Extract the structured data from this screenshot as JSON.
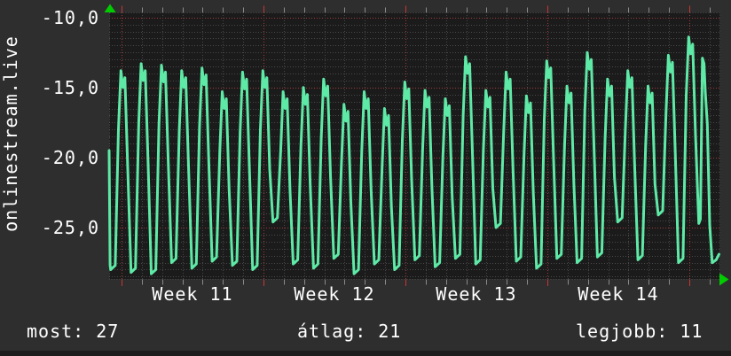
{
  "title_vertical": "onlinestream.live",
  "colors": {
    "background": "#2e2e2e",
    "plot_background": "#1b1b1b",
    "grid_minor": "#484848",
    "grid_major": "#a03a3a",
    "tick_day": "#8a8a8a",
    "tick_week": "#cc3333",
    "border": "#565656",
    "line": "#5ee9a6",
    "arrow": "#00cc00",
    "text": "#ffffff",
    "bottom_strip": "#1d1d1d"
  },
  "chart_data": {
    "type": "line",
    "title": "onlinestream.live",
    "xlabel": "",
    "ylabel": "onlinestream.live",
    "grid": true,
    "legend_position": "none",
    "x_unit": "days",
    "xlim_days": [
      0,
      30.15
    ],
    "ylim": [
      -28.7,
      -9.6
    ],
    "y_ticks": [
      -10,
      -15,
      -20,
      -25
    ],
    "y_tick_labels": [
      "-10,0",
      "-15,0",
      "-20,0",
      "-25,0"
    ],
    "y_minor_step": 0.5,
    "x_tick_labels": [
      "Week 11",
      "Week 12",
      "Week 13",
      "Week 14"
    ],
    "week_line_positions_days": [
      0.61,
      7.61,
      14.61,
      21.61,
      28.61
    ],
    "day_line_step_days": 1,
    "week_label_centers_days": [
      4.11,
      11.11,
      18.11,
      25.11
    ],
    "series": [
      {
        "name": "onlinestream.live",
        "description": "daily oscillating value, one cycle per day",
        "start_points": [
          [
            0,
            -19.5
          ],
          [
            0.05,
            -27.7
          ]
        ],
        "initial_trough": -28.0,
        "peaks_by_day": [
          -13.8,
          -13.3,
          -13.4,
          -13.8,
          -13.6,
          -15.3,
          -13.9,
          -13.8,
          -15.3,
          -15.0,
          -14.4,
          -16.2,
          -15.3,
          -16.5,
          -14.6,
          -15.2,
          -15.8,
          -12.8,
          -15.2,
          -13.9,
          -15.6,
          -13.1,
          -14.9,
          -12.5,
          -14.4,
          -13.8,
          -14.9,
          -12.7,
          -11.4
        ],
        "troughs_by_day": [
          -28.2,
          -28.3,
          -27.5,
          -27.9,
          -27.4,
          -27.7,
          -28.0,
          -24.6,
          -27.6,
          -27.9,
          -27.2,
          -28.3,
          -27.6,
          -28.0,
          -27.3,
          -27.8,
          -27.2,
          -27.6,
          -25.0,
          -27.4,
          -27.9,
          -27.2,
          -27.5,
          -27.1,
          -24.6,
          -27.3,
          -24.1,
          -27.5,
          -24.7
        ],
        "cycle_shape": [
          [
            0.08,
            "q",
            0.0
          ],
          [
            0.3,
            "q",
            0.3
          ],
          [
            0.46,
            "p",
            -4.2
          ],
          [
            0.58,
            "p",
            0.0
          ],
          [
            0.68,
            "p",
            -1.2
          ],
          [
            0.78,
            "p",
            -0.5
          ],
          [
            0.92,
            "p",
            -7.0
          ]
        ],
        "tail_points": [
          [
            29.08,
            -24.7
          ],
          [
            29.16,
            -24.4
          ],
          [
            29.26,
            -12.9
          ],
          [
            29.34,
            -13.3
          ],
          [
            29.4,
            -15.3
          ],
          [
            29.5,
            -17.6
          ],
          [
            29.62,
            -24.8
          ],
          [
            29.74,
            -27.5
          ],
          [
            29.94,
            -27.3
          ],
          [
            30.08,
            -26.9
          ]
        ]
      }
    ],
    "stats": {
      "most": 27,
      "atlag": 21,
      "legjobb": 11
    }
  },
  "footer": {
    "items": [
      {
        "label": "most:",
        "value": "27"
      },
      {
        "label": "átlag:",
        "value": "21"
      },
      {
        "label": "legjobb:",
        "value": "11"
      }
    ]
  }
}
